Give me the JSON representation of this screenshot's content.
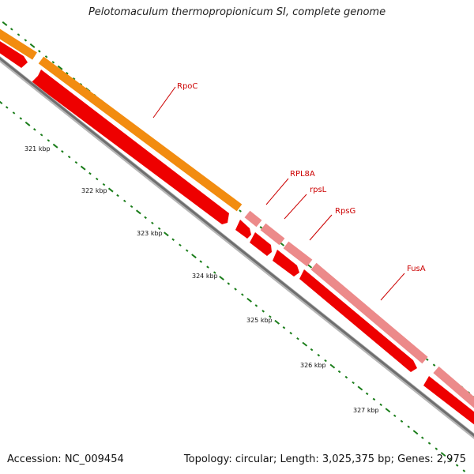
{
  "title": "Pelotomaculum thermopropionicum SI, complete genome",
  "footer": {
    "accession": "Accession: NC_009454",
    "topology": "Topology: circular; Length: 3,025,375 bp; Genes: 2,975"
  },
  "colors": {
    "rpoc_band": "#f28c10",
    "operon_band": "#ec8a8a",
    "gene_red": "#ee0000",
    "backbone": "#6f6f6f",
    "tick_green": "#1a7d1a",
    "label_red": "#cc0000"
  },
  "scale_labels": [
    "321 kbp",
    "322 kbp",
    "323 kbp",
    "324 kbp",
    "325 kbp",
    "326 kbp",
    "327 kbp"
  ],
  "genes": [
    {
      "name": "RpoC",
      "label": "RpoC"
    },
    {
      "name": "RPL8A",
      "label": "RPL8A"
    },
    {
      "name": "rpsL",
      "label": "rpsL"
    },
    {
      "name": "RpsG",
      "label": "RpsG"
    },
    {
      "name": "FusA",
      "label": "FusA"
    }
  ]
}
